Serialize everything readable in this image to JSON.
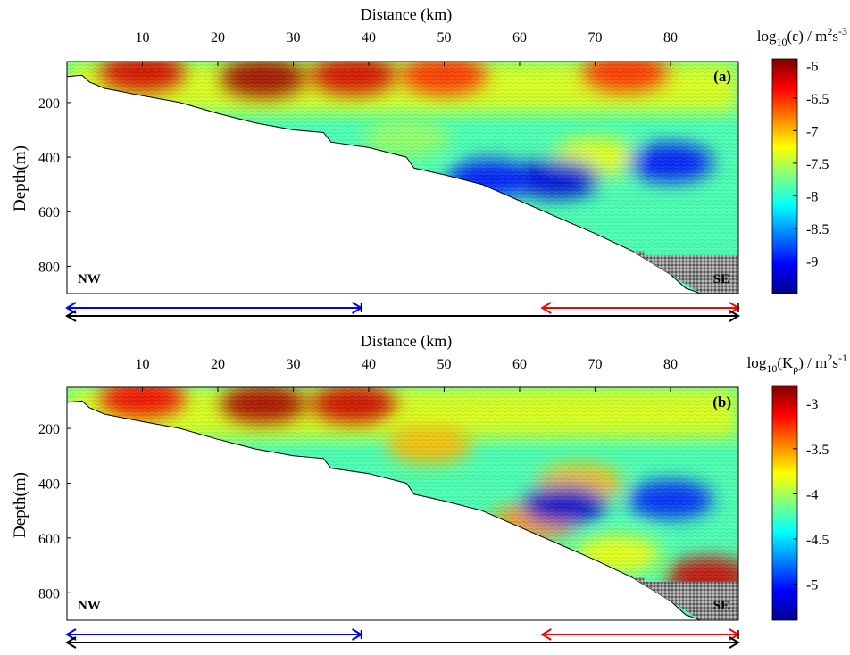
{
  "figure": {
    "ylabel": "Depth(m)"
  },
  "chart_data": [
    {
      "type": "heatmap",
      "panel_label": "(a)",
      "xlabel": "Distance (km)",
      "ylabel": "Depth(m)",
      "colorbar_label_main": "log",
      "colorbar_label_sub": "10",
      "colorbar_label_rest": "(ε) / m",
      "colorbar_label_exp1": "2",
      "colorbar_label_mid": "s",
      "colorbar_label_exp2": "-3",
      "xticks": [
        10,
        20,
        30,
        40,
        50,
        60,
        70,
        80
      ],
      "yticks": [
        200,
        400,
        600,
        800
      ],
      "xlim": [
        0,
        89
      ],
      "ylim": [
        900,
        50
      ],
      "colorbar_ticks": [
        -6,
        -6.5,
        -7,
        -7.5,
        -8,
        -8.5,
        -9
      ],
      "colorbar_range": [
        -9.5,
        -5.9
      ],
      "corner_labels": {
        "left": "NW",
        "right": "SE"
      },
      "bathymetry": [
        [
          0,
          105
        ],
        [
          2,
          100
        ],
        [
          3,
          125
        ],
        [
          5,
          148
        ],
        [
          10,
          175
        ],
        [
          15,
          200
        ],
        [
          20,
          240
        ],
        [
          25,
          275
        ],
        [
          30,
          300
        ],
        [
          34,
          310
        ],
        [
          35,
          345
        ],
        [
          40,
          365
        ],
        [
          45,
          400
        ],
        [
          46,
          440
        ],
        [
          50,
          465
        ],
        [
          55,
          500
        ],
        [
          60,
          560
        ],
        [
          65,
          620
        ],
        [
          70,
          680
        ],
        [
          75,
          745
        ],
        [
          80,
          830
        ],
        [
          82,
          880
        ],
        [
          84,
          900
        ]
      ],
      "hotspots": [
        {
          "x": 10,
          "y": 90,
          "value": -6.2
        },
        {
          "x": 26,
          "y": 110,
          "value": -6.0
        },
        {
          "x": 38,
          "y": 100,
          "value": -6.2
        },
        {
          "x": 50,
          "y": 100,
          "value": -6.5
        },
        {
          "x": 74,
          "y": 90,
          "value": -6.5
        },
        {
          "x": 70,
          "y": 400,
          "value": -7.3
        },
        {
          "x": 65,
          "y": 480,
          "value": -9.2
        },
        {
          "x": 80,
          "y": 420,
          "value": -9.0
        },
        {
          "x": 56,
          "y": 480,
          "value": -9.0
        },
        {
          "x": 45,
          "y": 330,
          "value": -7.6
        }
      ],
      "ranges": [
        {
          "x0": 0,
          "x1": 39,
          "color": "#0000ff"
        },
        {
          "x0": 63,
          "x1": 89,
          "color": "#ff0000"
        }
      ]
    },
    {
      "type": "heatmap",
      "panel_label": "(b)",
      "xlabel": "Distance (km)",
      "ylabel": "Depth(m)",
      "colorbar_label_main": "log",
      "colorbar_label_sub": "10",
      "colorbar_label_rest": "(K",
      "colorbar_label_sub2": "ρ",
      "colorbar_label_rest2": ") / m",
      "colorbar_label_exp1": "2",
      "colorbar_label_mid": "s",
      "colorbar_label_exp2": "-1",
      "xticks": [
        10,
        20,
        30,
        40,
        50,
        60,
        70,
        80
      ],
      "yticks": [
        200,
        400,
        600,
        800
      ],
      "xlim": [
        0,
        89
      ],
      "ylim": [
        900,
        50
      ],
      "colorbar_ticks": [
        -3,
        -3.5,
        -4,
        -4.5,
        -5
      ],
      "colorbar_range": [
        -5.4,
        -2.8
      ],
      "corner_labels": {
        "left": "NW",
        "right": "SE"
      },
      "bathymetry": [
        [
          0,
          105
        ],
        [
          2,
          100
        ],
        [
          3,
          125
        ],
        [
          5,
          148
        ],
        [
          10,
          175
        ],
        [
          15,
          200
        ],
        [
          20,
          240
        ],
        [
          25,
          275
        ],
        [
          30,
          300
        ],
        [
          34,
          310
        ],
        [
          35,
          345
        ],
        [
          40,
          365
        ],
        [
          45,
          400
        ],
        [
          46,
          440
        ],
        [
          50,
          465
        ],
        [
          55,
          500
        ],
        [
          60,
          560
        ],
        [
          65,
          620
        ],
        [
          70,
          680
        ],
        [
          75,
          745
        ],
        [
          80,
          830
        ],
        [
          82,
          880
        ],
        [
          84,
          900
        ]
      ],
      "hotspots": [
        {
          "x": 10,
          "y": 90,
          "value": -3.1
        },
        {
          "x": 26,
          "y": 110,
          "value": -2.9
        },
        {
          "x": 38,
          "y": 110,
          "value": -3.0
        },
        {
          "x": 48,
          "y": 260,
          "value": -3.6
        },
        {
          "x": 68,
          "y": 400,
          "value": -3.6
        },
        {
          "x": 62,
          "y": 540,
          "value": -3.5
        },
        {
          "x": 66,
          "y": 480,
          "value": -5.2
        },
        {
          "x": 80,
          "y": 460,
          "value": -5.0
        },
        {
          "x": 85,
          "y": 740,
          "value": -3.0
        },
        {
          "x": 73,
          "y": 660,
          "value": -3.8
        }
      ],
      "ranges": [
        {
          "x0": 0,
          "x1": 39,
          "color": "#0000ff"
        },
        {
          "x0": 63,
          "x1": 89,
          "color": "#ff0000"
        }
      ]
    }
  ]
}
